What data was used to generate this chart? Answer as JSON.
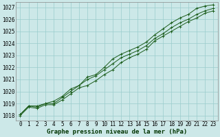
{
  "title": "Graphe pression niveau de la mer (hPa)",
  "bg_color": "#cce8e8",
  "grid_color": "#99cccc",
  "line_color": "#1a5c1a",
  "marker_color": "#1a5c1a",
  "x_labels": [
    "0",
    "1",
    "2",
    "3",
    "4",
    "5",
    "6",
    "7",
    "8",
    "9",
    "10",
    "11",
    "12",
    "13",
    "14",
    "15",
    "16",
    "17",
    "18",
    "19",
    "20",
    "21",
    "22",
    "23"
  ],
  "y_ticks": [
    1018,
    1019,
    1020,
    1021,
    1022,
    1023,
    1024,
    1025,
    1026,
    1027
  ],
  "ylim": [
    1017.6,
    1027.4
  ],
  "xlim": [
    -0.5,
    23.5
  ],
  "line1": [
    1018.1,
    1018.8,
    1018.8,
    1019.0,
    1019.2,
    1019.6,
    1020.2,
    1020.5,
    1021.0,
    1021.3,
    1021.8,
    1022.3,
    1022.8,
    1023.1,
    1023.4,
    1023.8,
    1024.4,
    1024.8,
    1025.3,
    1025.7,
    1026.0,
    1026.4,
    1026.7,
    1026.9
  ],
  "line2": [
    1018.0,
    1018.7,
    1018.6,
    1018.9,
    1018.9,
    1019.3,
    1019.8,
    1020.3,
    1020.5,
    1020.9,
    1021.4,
    1021.8,
    1022.4,
    1022.8,
    1023.1,
    1023.5,
    1024.2,
    1024.6,
    1025.0,
    1025.4,
    1025.8,
    1026.1,
    1026.5,
    1026.7
  ],
  "line3": [
    1018.1,
    1018.8,
    1018.7,
    1019.0,
    1019.0,
    1019.5,
    1020.0,
    1020.5,
    1021.2,
    1021.4,
    1022.0,
    1022.7,
    1023.1,
    1023.4,
    1023.7,
    1024.1,
    1024.7,
    1025.2,
    1025.7,
    1026.1,
    1026.4,
    1026.9,
    1027.1,
    1027.2
  ],
  "title_fontsize": 6.5,
  "tick_fontsize": 5.5
}
